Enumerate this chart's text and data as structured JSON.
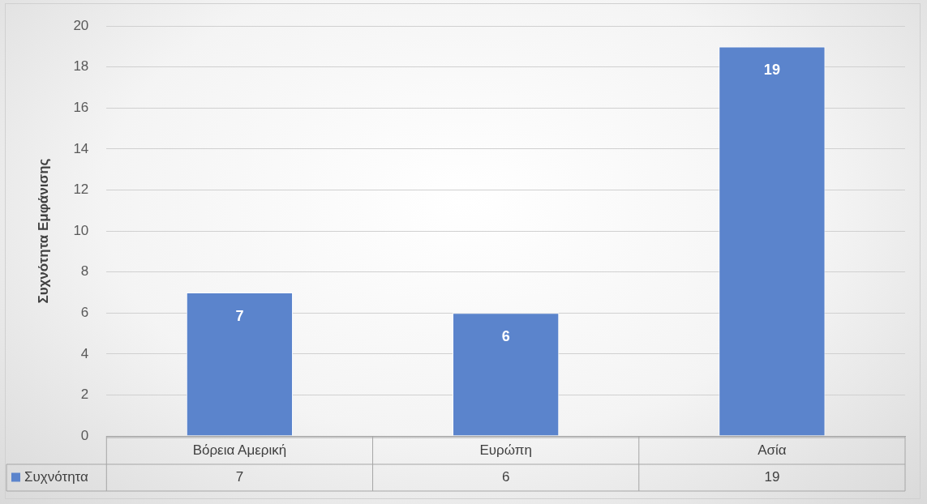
{
  "chart_data": {
    "type": "bar",
    "ylabel": "Συχνότητα Εμφάνισης",
    "categories": [
      "Βόρεια Αμερική",
      "Ευρώπη",
      "Ασία"
    ],
    "series": [
      {
        "name": "Συχνότητα",
        "color": "#5b84cc",
        "values": [
          7,
          6,
          19
        ]
      }
    ],
    "annotations": [
      "7",
      "6",
      "19"
    ],
    "ylim": [
      0,
      20
    ],
    "yticks": [
      0,
      2,
      4,
      6,
      8,
      10,
      12,
      14,
      16,
      18,
      20
    ],
    "grid": "y",
    "legend": "bottom",
    "data_labels": true
  }
}
